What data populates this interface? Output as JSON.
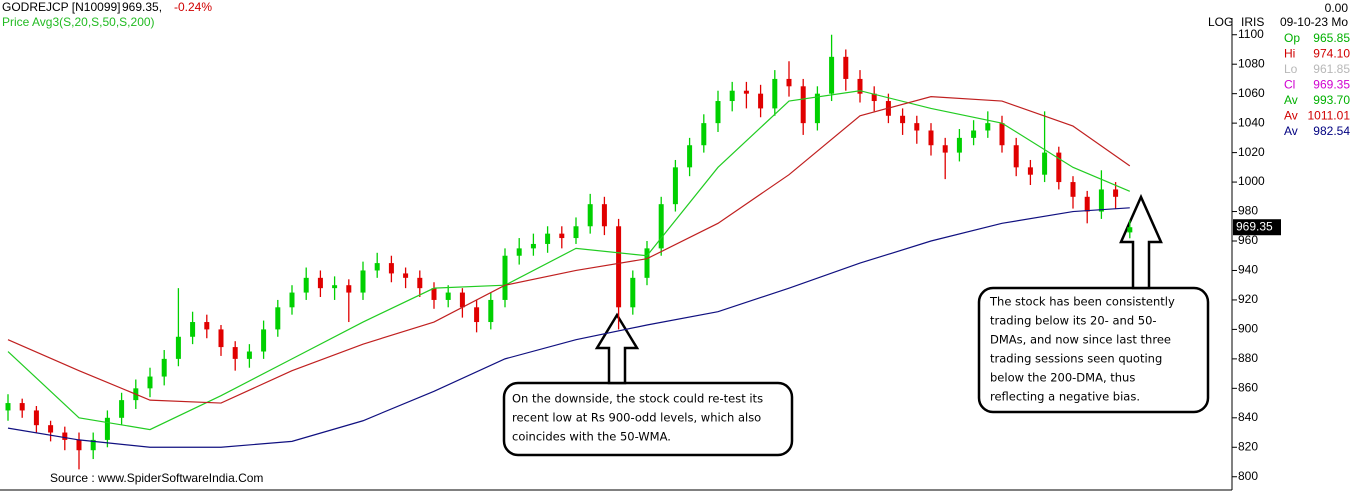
{
  "chart_data": {
    "type": "candlestick",
    "header": {
      "symbol": "GODREJCP [N10099]",
      "last": "969.35,",
      "change": "-0.24%",
      "legend": "Price  Avg3(S,20,S,50,S,200)"
    },
    "axis_flags": [
      "LOG",
      "IRIS"
    ],
    "info_panel": {
      "top": "0.00",
      "date": "09-10-23 Mo",
      "rows": [
        {
          "label": "Op",
          "value": "965.85",
          "color": "#00b000"
        },
        {
          "label": "Hi",
          "value": "974.10",
          "color": "#d00000"
        },
        {
          "label": "Lo",
          "value": "961.85",
          "color": "#b8b8b8"
        },
        {
          "label": "Cl",
          "value": "969.35",
          "color": "#d000d0"
        },
        {
          "label": "Av",
          "value": "993.70",
          "color": "#00b000"
        },
        {
          "label": "Av",
          "value": "1011.01",
          "color": "#d00000"
        },
        {
          "label": "Av",
          "value": "982.54",
          "color": "#000080"
        }
      ]
    },
    "price_tag": "969.35",
    "source": "Source : www.SpiderSoftwareIndia.Com",
    "up_color": "#00d000",
    "down_color": "#e00000",
    "open": [
      845,
      850,
      845,
      835,
      830,
      825,
      818,
      825,
      840,
      852,
      860,
      868,
      880,
      895,
      905,
      900,
      888,
      880,
      885,
      900,
      915,
      925,
      935,
      928,
      930,
      925,
      940,
      945,
      938,
      935,
      928,
      920,
      925,
      915,
      905,
      920,
      950,
      955,
      958,
      965,
      962,
      970,
      985,
      970,
      915,
      935,
      955,
      985,
      1010,
      1025,
      1040,
      1055,
      1062,
      1060,
      1050,
      1070,
      1065,
      1040,
      1060,
      1085,
      1070,
      1060,
      1055,
      1045,
      1040,
      1035,
      1025,
      1020,
      1030,
      1035,
      1040,
      1025,
      1010,
      1005,
      1020,
      1000,
      990,
      980,
      995,
      965.85
    ],
    "high": [
      856,
      853,
      848,
      838,
      834,
      830,
      830,
      845,
      857,
      866,
      874,
      886,
      928,
      912,
      910,
      903,
      892,
      890,
      906,
      920,
      930,
      942,
      940,
      936,
      934,
      946,
      952,
      950,
      942,
      940,
      932,
      930,
      928,
      920,
      925,
      955,
      962,
      965,
      970,
      970,
      976,
      992,
      990,
      975,
      940,
      960,
      990,
      1015,
      1030,
      1046,
      1062,
      1068,
      1068,
      1066,
      1076,
      1082,
      1070,
      1065,
      1100,
      1090,
      1076,
      1065,
      1060,
      1050,
      1045,
      1040,
      1030,
      1036,
      1042,
      1048,
      1045,
      1030,
      1015,
      1048,
      1024,
      1004,
      994,
      1008,
      1000,
      974.1
    ],
    "low": [
      838,
      840,
      830,
      824,
      818,
      805,
      812,
      820,
      835,
      846,
      854,
      862,
      875,
      890,
      894,
      882,
      872,
      874,
      880,
      895,
      910,
      920,
      922,
      920,
      905,
      920,
      935,
      932,
      928,
      922,
      914,
      915,
      908,
      898,
      900,
      915,
      944,
      950,
      952,
      955,
      958,
      965,
      964,
      900,
      910,
      930,
      950,
      980,
      1004,
      1020,
      1034,
      1048,
      1050,
      1044,
      1045,
      1058,
      1032,
      1035,
      1055,
      1062,
      1054,
      1048,
      1040,
      1032,
      1026,
      1018,
      1002,
      1014,
      1025,
      1030,
      1020,
      1004,
      998,
      1000,
      995,
      982,
      972,
      975,
      982,
      961.85
    ],
    "close": [
      850,
      845,
      835,
      830,
      825,
      818,
      825,
      840,
      852,
      860,
      868,
      880,
      895,
      905,
      900,
      888,
      880,
      885,
      900,
      915,
      925,
      935,
      928,
      930,
      925,
      940,
      945,
      938,
      935,
      928,
      920,
      925,
      915,
      905,
      920,
      950,
      955,
      958,
      965,
      962,
      970,
      985,
      970,
      915,
      935,
      955,
      985,
      1010,
      1025,
      1040,
      1055,
      1062,
      1060,
      1050,
      1070,
      1065,
      1040,
      1060,
      1085,
      1070,
      1060,
      1055,
      1045,
      1040,
      1035,
      1025,
      1020,
      1030,
      1035,
      1040,
      1025,
      1010,
      1005,
      1020,
      1000,
      990,
      980,
      995,
      990,
      969.35
    ],
    "series": [
      {
        "color": "#22cc22",
        "x": [
          0,
          5,
          10,
          15,
          20,
          25,
          30,
          35,
          40,
          45,
          50,
          55,
          60,
          65,
          70,
          75,
          79
        ],
        "values": [
          885,
          840,
          832,
          855,
          880,
          905,
          928,
          930,
          955,
          950,
          1010,
          1055,
          1062,
          1050,
          1040,
          1010,
          993.7
        ]
      },
      {
        "color": "#c02020",
        "x": [
          0,
          5,
          10,
          15,
          20,
          25,
          30,
          35,
          40,
          45,
          50,
          55,
          60,
          65,
          70,
          75,
          79
        ],
        "values": [
          893,
          872,
          852,
          850,
          872,
          890,
          905,
          930,
          940,
          948,
          972,
          1005,
          1045,
          1058,
          1055,
          1038,
          1011.01
        ]
      },
      {
        "color": "#101080",
        "x": [
          0,
          5,
          10,
          15,
          20,
          25,
          30,
          35,
          40,
          45,
          50,
          55,
          60,
          65,
          70,
          75,
          79
        ],
        "values": [
          833,
          825,
          820,
          820,
          824,
          838,
          858,
          880,
          893,
          903,
          912,
          928,
          945,
          960,
          972,
          980,
          982.54
        ]
      }
    ],
    "ylim": [
      791,
      1110
    ],
    "yticks": [
      800,
      820,
      840,
      860,
      880,
      900,
      920,
      940,
      960,
      980,
      1000,
      1020,
      1040,
      1060,
      1080,
      1100
    ],
    "annotations": [
      {
        "lines": [
          "On the downside, the stock could re-test its",
          "recent low at Rs 900-odd levels, which also",
          "coincides with the 50-WMA."
        ]
      },
      {
        "lines": [
          "The stock has been consistently",
          "trading below its 20- and 50-",
          "DMAs, and now since last three",
          "trading sessions seen quoting",
          "below the 200-DMA, thus",
          "reflecting a negative bias."
        ]
      }
    ]
  }
}
